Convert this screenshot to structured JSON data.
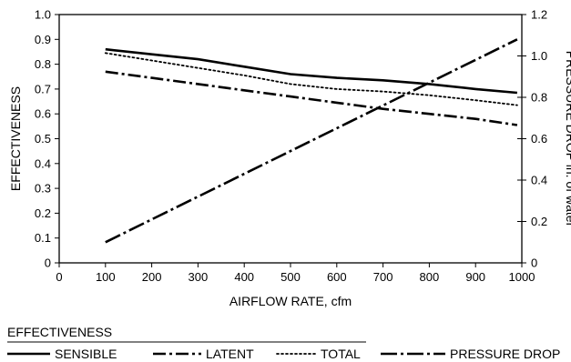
{
  "chart_data": {
    "type": "line",
    "title": "",
    "xlabel": "AIRFLOW RATE, cfm",
    "ylabel": "EFFECTIVENESS",
    "y2label": "PRESSURE DROP in. of water",
    "xlim": [
      0,
      1000
    ],
    "ylim": [
      0,
      1.0
    ],
    "y2lim": [
      0,
      1.2
    ],
    "x_ticks": [
      "0",
      "100",
      "200",
      "300",
      "400",
      "500",
      "600",
      "700",
      "800",
      "900",
      "1000"
    ],
    "y_ticks": [
      "0",
      "0.1",
      "0.2",
      "0.3",
      "0.4",
      "0.5",
      "0.6",
      "0.7",
      "0.8",
      "0.9",
      "1.0"
    ],
    "y2_ticks": [
      "0",
      "0.2",
      "0.4",
      "0.6",
      "0.8",
      "1.0",
      "1.2"
    ],
    "grid": false,
    "legend_title": "EFFECTIVENESS",
    "legend_position": "bottom",
    "series": [
      {
        "name": "SENSIBLE",
        "axis": "left",
        "dash": "solid",
        "x": [
          100,
          200,
          300,
          400,
          500,
          600,
          700,
          800,
          900,
          990
        ],
        "y": [
          0.86,
          0.84,
          0.82,
          0.79,
          0.76,
          0.745,
          0.735,
          0.72,
          0.7,
          0.685
        ]
      },
      {
        "name": "LATENT",
        "axis": "left",
        "dash": "dash-dot",
        "x": [
          100,
          200,
          300,
          400,
          500,
          600,
          700,
          800,
          900,
          990
        ],
        "y": [
          0.77,
          0.745,
          0.72,
          0.695,
          0.67,
          0.645,
          0.62,
          0.6,
          0.58,
          0.555
        ]
      },
      {
        "name": "TOTAL",
        "axis": "left",
        "dash": "dotted",
        "x": [
          100,
          200,
          300,
          400,
          500,
          600,
          700,
          800,
          900,
          990
        ],
        "y": [
          0.845,
          0.815,
          0.785,
          0.755,
          0.72,
          0.7,
          0.69,
          0.675,
          0.655,
          0.635
        ]
      },
      {
        "name": "PRESSURE DROP",
        "axis": "right",
        "dash": "long-dash-dot",
        "x": [
          100,
          990
        ],
        "y": [
          0.1,
          1.08
        ]
      }
    ]
  }
}
